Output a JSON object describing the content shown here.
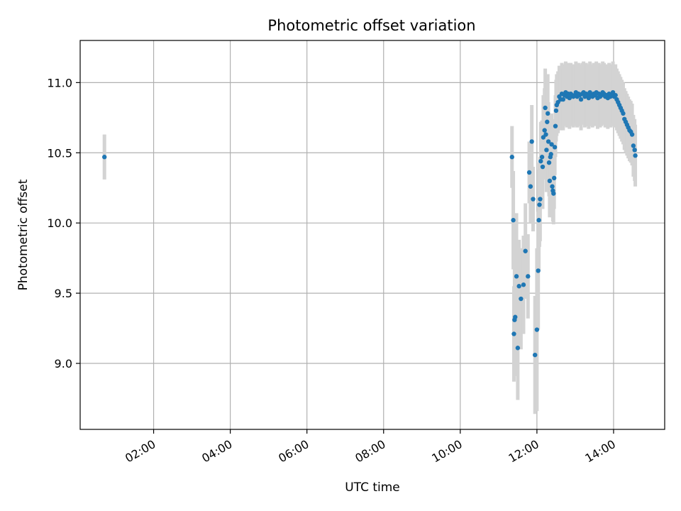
{
  "chart_data": {
    "type": "scatter",
    "title": "Photometric offset variation",
    "xlabel": "UTC time",
    "ylabel": "Photometric offset",
    "x_unit": "hours UTC",
    "xlim": [
      "00:05",
      "15:20"
    ],
    "ylim": [
      8.53,
      11.3
    ],
    "x_ticks": [
      "02:00",
      "04:00",
      "06:00",
      "08:00",
      "10:00",
      "12:00",
      "14:00"
    ],
    "y_ticks": [
      "9.0",
      "9.5",
      "10.0",
      "10.5",
      "11.0"
    ],
    "grid": true,
    "legend": "none",
    "marker_color": "#1f77b4",
    "errorbar_color": "#d3d3d3",
    "series": [
      {
        "x": [
          "00:43",
          "11:21",
          "11:23",
          "11:24",
          "11:25",
          "11:26",
          "11:28",
          "11:30",
          "11:32",
          "11:35",
          "11:39",
          "11:42",
          "11:46",
          "11:48",
          "11:50",
          "11:52",
          "11:54",
          "11:57",
          "12:00",
          "12:02",
          "12:03",
          "12:04",
          "12:05",
          "12:06",
          "12:08",
          "12:09",
          "12:10",
          "12:12",
          "12:13",
          "12:14",
          "12:15",
          "12:16",
          "12:17",
          "12:18",
          "12:19",
          "12:20",
          "12:21",
          "12:22",
          "12:23",
          "12:24",
          "12:25",
          "12:26",
          "12:27",
          "12:28",
          "12:29",
          "12:30",
          "12:31",
          "12:33",
          "12:35",
          "12:37",
          "12:39",
          "12:41",
          "12:43",
          "12:45",
          "12:47",
          "12:49",
          "12:51",
          "12:53",
          "12:55",
          "12:57",
          "12:59",
          "13:01",
          "13:03",
          "13:05",
          "13:07",
          "13:09",
          "13:11",
          "13:13",
          "13:15",
          "13:17",
          "13:19",
          "13:21",
          "13:23",
          "13:25",
          "13:27",
          "13:29",
          "13:31",
          "13:33",
          "13:35",
          "13:37",
          "13:39",
          "13:41",
          "13:43",
          "13:45",
          "13:47",
          "13:49",
          "13:51",
          "13:53",
          "13:55",
          "13:57",
          "13:59",
          "14:01",
          "14:03",
          "14:05",
          "14:07",
          "14:09",
          "14:11",
          "14:13",
          "14:15",
          "14:17",
          "14:19",
          "14:21",
          "14:23",
          "14:25",
          "14:27",
          "14:29",
          "14:31",
          "14:33",
          "14:34"
        ],
        "y": [
          10.47,
          10.47,
          10.02,
          9.21,
          9.31,
          9.33,
          9.62,
          9.11,
          9.55,
          9.46,
          9.56,
          9.8,
          9.62,
          10.36,
          10.26,
          10.58,
          10.17,
          9.06,
          9.24,
          9.66,
          10.02,
          10.13,
          10.17,
          10.44,
          10.47,
          10.4,
          10.61,
          10.66,
          10.82,
          10.63,
          10.52,
          10.72,
          10.78,
          10.58,
          10.43,
          10.3,
          10.47,
          10.49,
          10.56,
          10.26,
          10.23,
          10.21,
          10.32,
          10.54,
          10.69,
          10.8,
          10.84,
          10.86,
          10.9,
          10.88,
          10.92,
          10.88,
          10.91,
          10.93,
          10.9,
          10.92,
          10.89,
          10.92,
          10.91,
          10.9,
          10.91,
          10.93,
          10.9,
          10.92,
          10.91,
          10.88,
          10.92,
          10.93,
          10.9,
          10.92,
          10.91,
          10.89,
          10.93,
          10.91,
          10.9,
          10.92,
          10.91,
          10.93,
          10.89,
          10.92,
          10.9,
          10.91,
          10.93,
          10.92,
          10.9,
          10.91,
          10.89,
          10.92,
          10.9,
          10.91,
          10.93,
          10.9,
          10.91,
          10.88,
          10.86,
          10.84,
          10.82,
          10.8,
          10.78,
          10.74,
          10.72,
          10.7,
          10.68,
          10.66,
          10.65,
          10.63,
          10.55,
          10.52,
          10.48
        ],
        "err": [
          0.16,
          0.22,
          0.35,
          0.34,
          0.38,
          0.42,
          0.45,
          0.37,
          0.33,
          0.36,
          0.35,
          0.34,
          0.3,
          0.22,
          0.26,
          0.26,
          0.23,
          0.42,
          0.58,
          0.42,
          0.36,
          0.3,
          0.3,
          0.28,
          0.26,
          0.3,
          0.3,
          0.3,
          0.28,
          0.28,
          0.3,
          0.3,
          0.28,
          0.28,
          0.24,
          0.26,
          0.24,
          0.24,
          0.22,
          0.22,
          0.22,
          0.22,
          0.22,
          0.2,
          0.22,
          0.22,
          0.22,
          0.22,
          0.22,
          0.22,
          0.22,
          0.22,
          0.22,
          0.22,
          0.22,
          0.22,
          0.22,
          0.22,
          0.22,
          0.22,
          0.22,
          0.22,
          0.22,
          0.22,
          0.22,
          0.22,
          0.22,
          0.22,
          0.22,
          0.22,
          0.22,
          0.22,
          0.22,
          0.22,
          0.22,
          0.22,
          0.22,
          0.22,
          0.22,
          0.22,
          0.22,
          0.22,
          0.22,
          0.22,
          0.22,
          0.22,
          0.22,
          0.22,
          0.22,
          0.22,
          0.22,
          0.22,
          0.22,
          0.22,
          0.22,
          0.22,
          0.22,
          0.22,
          0.22,
          0.22,
          0.22,
          0.22,
          0.22,
          0.22,
          0.22,
          0.22,
          0.22,
          0.22,
          0.22
        ]
      }
    ]
  }
}
